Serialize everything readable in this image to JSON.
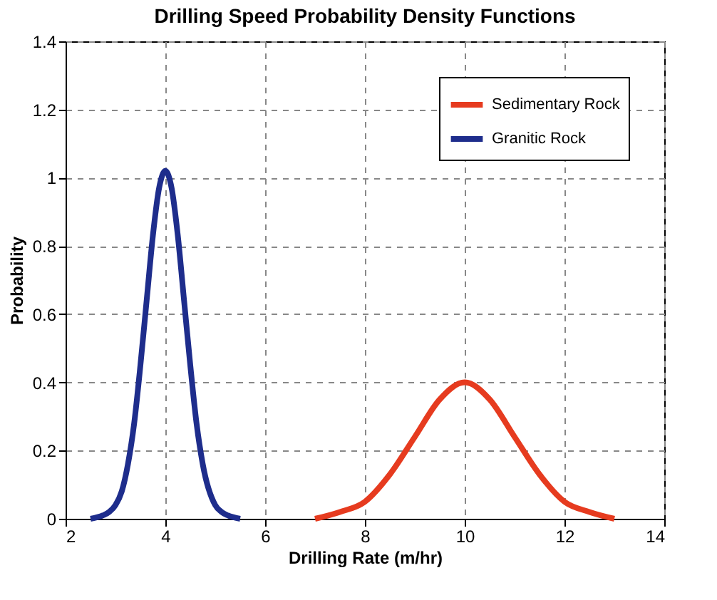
{
  "chart_data": {
    "type": "line",
    "title": "Drilling Speed Probability Density Functions",
    "xlabel": "Drilling Rate (m/hr)",
    "ylabel": "Probability",
    "xlim": [
      2,
      14
    ],
    "xticks": [
      2,
      4,
      6,
      8,
      10,
      12,
      14
    ],
    "ylim": [
      0,
      1.4
    ],
    "yticks": [
      0,
      0.2,
      0.4,
      0.6,
      0.8,
      1,
      1.2,
      1.4
    ],
    "grid": true,
    "legend": "top right",
    "line_style": "solid",
    "marker": "none",
    "series": [
      {
        "name": "Sedimentary Rock",
        "color": "#e63b1f",
        "x": [
          7,
          7.5,
          8,
          8.5,
          9,
          9.5,
          10,
          10.5,
          11,
          11.5,
          12,
          12.5,
          13
        ],
        "values": [
          0.0,
          0.02,
          0.05,
          0.13,
          0.24,
          0.35,
          0.4,
          0.35,
          0.24,
          0.13,
          0.05,
          0.02,
          0.0
        ]
      },
      {
        "name": "Granitic Rock",
        "color": "#1e2d8c",
        "x": [
          2.5,
          2.75,
          2.875,
          3,
          3.125,
          3.25,
          3.375,
          3.5,
          3.625,
          3.75,
          3.875,
          4,
          4.125,
          4.25,
          4.375,
          4.5,
          4.625,
          4.75,
          5,
          5.125,
          5.25,
          5.5
        ],
        "values": [
          0.0,
          0.01,
          0.02,
          0.04,
          0.08,
          0.16,
          0.28,
          0.45,
          0.64,
          0.83,
          0.97,
          1.02,
          0.97,
          0.83,
          0.64,
          0.45,
          0.28,
          0.16,
          0.04,
          0.02,
          0.01,
          0.0
        ]
      }
    ]
  }
}
